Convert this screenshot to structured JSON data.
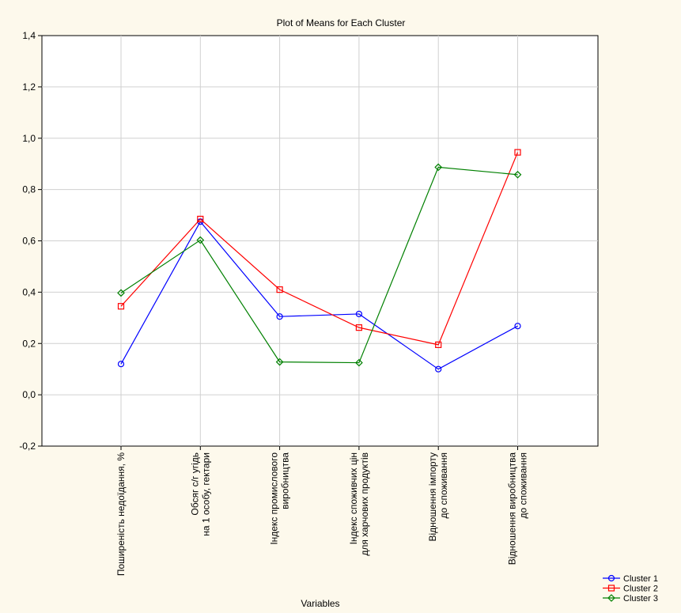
{
  "chart_data": {
    "type": "line",
    "title": "Plot of Means for Each Cluster",
    "xlabel": "Variables",
    "ylabel": "",
    "ylim": [
      -0.2,
      1.4
    ],
    "y_ticks": [
      "-0,2",
      "0,0",
      "0,2",
      "0,4",
      "0,6",
      "0,8",
      "1,0",
      "1,2",
      "1,4"
    ],
    "y_tick_values": [
      -0.2,
      0.0,
      0.2,
      0.4,
      0.6,
      0.8,
      1.0,
      1.2,
      1.4
    ],
    "grid": true,
    "legend_position": "bottom-right",
    "categories": [
      [
        "Поширеність недоїдання, %"
      ],
      [
        "Обсяг с/г угідь",
        "на 1 особу, гектари"
      ],
      [
        "Індекс промислового",
        "виробництва"
      ],
      [
        "Індекс споживчих цін",
        "для харчових продуктів"
      ],
      [
        "Відношення імпорту",
        "до споживання"
      ],
      [
        "Відношення виробництва",
        "до споживання"
      ]
    ],
    "series": [
      {
        "name": "Cluster 1",
        "color": "#0000ff",
        "marker": "circle",
        "values": [
          0.12,
          0.675,
          0.305,
          0.315,
          0.1,
          0.268
        ]
      },
      {
        "name": "Cluster 2",
        "color": "#ff0000",
        "marker": "square",
        "values": [
          0.345,
          0.685,
          0.41,
          0.262,
          0.195,
          0.945
        ]
      },
      {
        "name": "Cluster 3",
        "color": "#008000",
        "marker": "diamond",
        "values": [
          0.397,
          0.603,
          0.128,
          0.125,
          0.887,
          0.858
        ]
      }
    ]
  }
}
